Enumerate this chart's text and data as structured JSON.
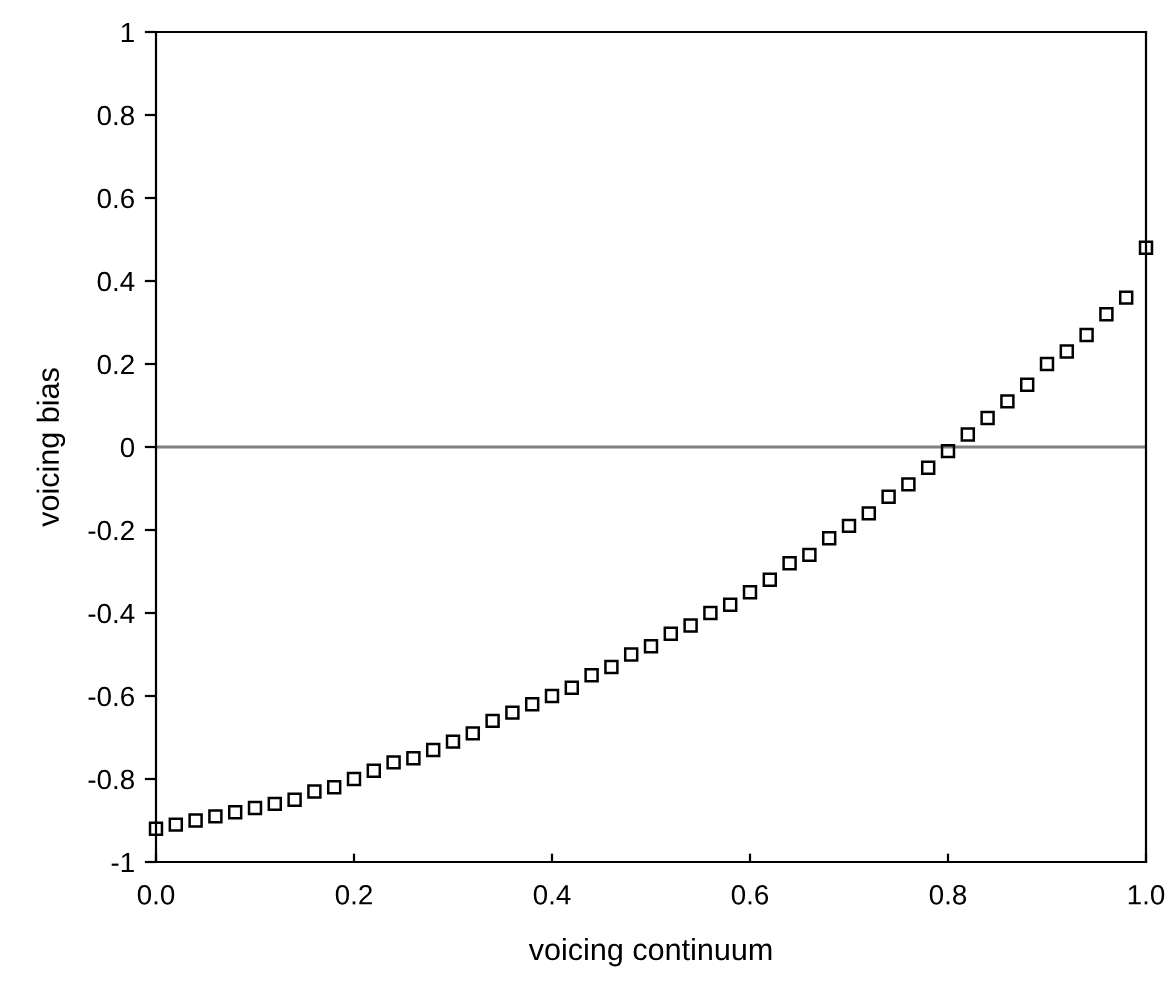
{
  "chart_data": {
    "type": "scatter",
    "xlabel": "voicing continuum",
    "ylabel": "voicing bias",
    "x": [
      0.0,
      0.02,
      0.04,
      0.06,
      0.08,
      0.1,
      0.12,
      0.14,
      0.16,
      0.18,
      0.2,
      0.22,
      0.24,
      0.26,
      0.28,
      0.3,
      0.32,
      0.34,
      0.36,
      0.38,
      0.4,
      0.42,
      0.44,
      0.46,
      0.48,
      0.5,
      0.52,
      0.54,
      0.56,
      0.58,
      0.6,
      0.62,
      0.64,
      0.66,
      0.68,
      0.7,
      0.72,
      0.74,
      0.76,
      0.78,
      0.8,
      0.82,
      0.84,
      0.86,
      0.88,
      0.9,
      0.92,
      0.94,
      0.96,
      0.98,
      1.0
    ],
    "series": [
      {
        "color": "#000000",
        "values": [
          -0.92,
          -0.91,
          -0.9,
          -0.89,
          -0.88,
          -0.87,
          -0.86,
          -0.85,
          -0.83,
          -0.82,
          -0.8,
          -0.78,
          -0.76,
          -0.75,
          -0.73,
          -0.71,
          -0.69,
          -0.66,
          -0.64,
          -0.62,
          -0.6,
          -0.58,
          -0.55,
          -0.53,
          -0.5,
          -0.48,
          -0.45,
          -0.43,
          -0.4,
          -0.38,
          -0.35,
          -0.32,
          -0.28,
          -0.26,
          -0.22,
          -0.19,
          -0.16,
          -0.12,
          -0.09,
          -0.05,
          -0.01,
          0.03,
          0.07,
          0.11,
          0.15,
          0.2,
          0.23,
          0.27,
          0.32,
          0.36,
          0.48
        ]
      }
    ],
    "marker": "square",
    "xlim": [
      0,
      1
    ],
    "ylim": [
      -1,
      1
    ],
    "xticks": [
      {
        "value": 0,
        "label": "0.0"
      },
      0.2,
      0.4,
      0.6,
      0.8,
      {
        "value": 1,
        "label": "1.0"
      }
    ],
    "yticks": [
      -1,
      -0.8,
      -0.6,
      -0.4,
      -0.2,
      0,
      0.2,
      0.4,
      0.6,
      0.8,
      1
    ],
    "ref_lines": [
      {
        "axis": "y",
        "value": 0,
        "color": "#808080"
      }
    ],
    "grid": false,
    "legend": false
  }
}
